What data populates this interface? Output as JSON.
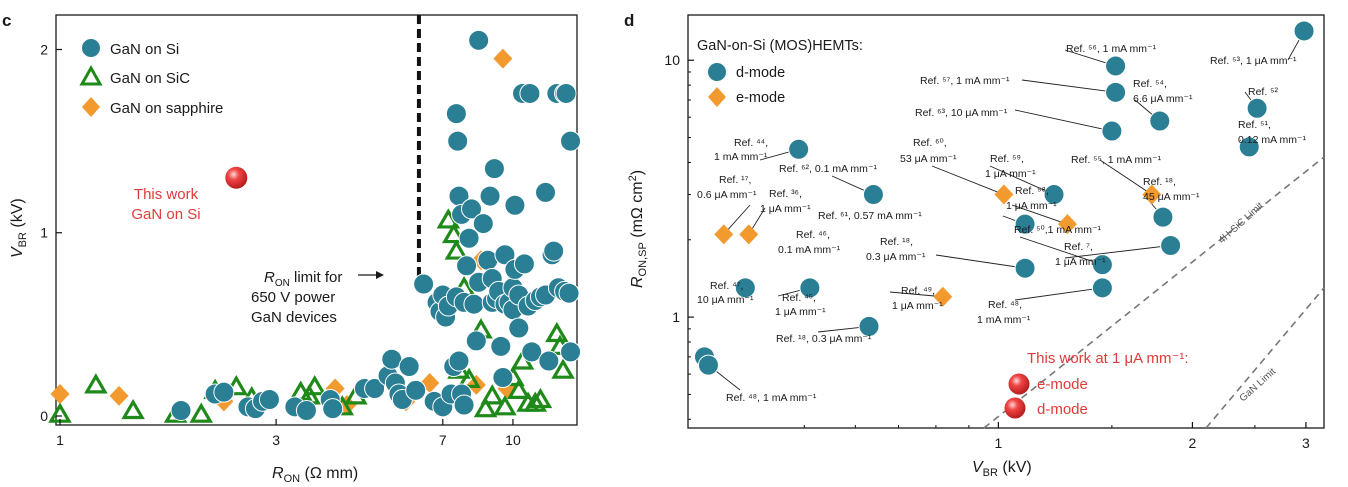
{
  "colors": {
    "si": "#2b7f94",
    "si_stroke": "#ffffff",
    "sic": "#1f8a1a",
    "sapphire": "#f29a2e",
    "this_work": "#e03b3b",
    "limit_line": "#777777"
  },
  "chart_data": [
    {
      "panel": "c",
      "type": "scatter",
      "xscale": "log",
      "xlim": [
        1,
        13.5
      ],
      "ylim": [
        0,
        2.15
      ],
      "xlabel": {
        "main": "R",
        "sub": "ON",
        "rest": " (Ω mm)"
      },
      "ylabel": {
        "main": "V",
        "sub": "BR",
        "rest": " (kV)"
      },
      "xticks": [
        {
          "v": 1,
          "label": "1"
        },
        {
          "v": 3,
          "label": "3"
        },
        {
          "v": 7,
          "label": "7"
        },
        {
          "v": 10,
          "label": "10"
        }
      ],
      "yticks": [
        {
          "v": 0,
          "label": "0"
        },
        {
          "v": 1,
          "label": "1"
        },
        {
          "v": 2,
          "label": "2"
        }
      ],
      "legend": [
        "GaN on Si",
        "GaN on SiC",
        "GaN on sapphire"
      ],
      "this_work": {
        "x": 2.45,
        "y": 1.3,
        "label1": "This work",
        "label2": "GaN on Si"
      },
      "limit": {
        "x": 6.2,
        "y_top": 2.2,
        "y_bottom": 0.8,
        "label_main": "R",
        "label_sub": "ON",
        "label_rest": " limit for",
        "label2": "650 V power",
        "label3": "GaN devices"
      },
      "series": [
        {
          "name": "GaN on sapphire",
          "marker": "diamond",
          "points": [
            [
              1.0,
              0.12
            ],
            [
              1.35,
              0.11
            ],
            [
              2.3,
              0.08
            ],
            [
              4.05,
              0.15
            ],
            [
              4.3,
              0.06
            ],
            [
              5.8,
              0.08
            ],
            [
              6.55,
              0.18
            ],
            [
              8.3,
              0.17
            ],
            [
              8.5,
              0.85
            ],
            [
              9.5,
              1.95
            ],
            [
              9.7,
              0.15
            ]
          ]
        },
        {
          "name": "GaN on SiC",
          "marker": "triangle",
          "points": [
            [
              1.0,
              0.01
            ],
            [
              1.2,
              0.17
            ],
            [
              1.45,
              0.03
            ],
            [
              1.8,
              0.01
            ],
            [
              2.05,
              0.01
            ],
            [
              2.2,
              0.14
            ],
            [
              2.45,
              0.16
            ],
            [
              2.65,
              0.1
            ],
            [
              3.4,
              0.13
            ],
            [
              3.55,
              0.11
            ],
            [
              3.65,
              0.16
            ],
            [
              4.2,
              0.05
            ],
            [
              4.5,
              0.11
            ],
            [
              7.2,
              1.07
            ],
            [
              7.4,
              0.99
            ],
            [
              7.5,
              0.9
            ],
            [
              7.8,
              0.7
            ],
            [
              8.0,
              0.2
            ],
            [
              7.6,
              0.25
            ],
            [
              8.5,
              0.47
            ],
            [
              8.7,
              0.04
            ],
            [
              9.0,
              0.11
            ],
            [
              9.6,
              0.05
            ],
            [
              10.0,
              0.21
            ],
            [
              10.3,
              0.14
            ],
            [
              10.8,
              0.07
            ],
            [
              11.2,
              0.07
            ],
            [
              11.5,
              0.09
            ],
            [
              12.5,
              0.45
            ],
            [
              12.7,
              0.38
            ],
            [
              12.9,
              0.25
            ],
            [
              10.5,
              0.3
            ]
          ]
        },
        {
          "name": "GaN on Si",
          "marker": "circle",
          "points": [
            [
              1.85,
              0.03
            ],
            [
              2.2,
              0.12
            ],
            [
              2.3,
              0.13
            ],
            [
              2.6,
              0.05
            ],
            [
              2.7,
              0.04
            ],
            [
              2.8,
              0.08
            ],
            [
              2.9,
              0.09
            ],
            [
              3.3,
              0.05
            ],
            [
              3.5,
              0.03
            ],
            [
              3.95,
              0.09
            ],
            [
              4.0,
              0.04
            ],
            [
              4.7,
              0.15
            ],
            [
              4.95,
              0.15
            ],
            [
              5.3,
              0.22
            ],
            [
              5.4,
              0.31
            ],
            [
              5.5,
              0.18
            ],
            [
              5.6,
              0.12
            ],
            [
              5.7,
              0.09
            ],
            [
              5.9,
              0.27
            ],
            [
              6.1,
              0.14
            ],
            [
              6.35,
              0.72
            ],
            [
              6.7,
              0.08
            ],
            [
              6.8,
              0.62
            ],
            [
              6.9,
              0.57
            ],
            [
              7.0,
              0.66
            ],
            [
              7.0,
              0.05
            ],
            [
              7.1,
              0.54
            ],
            [
              7.2,
              0.6
            ],
            [
              7.3,
              0.12
            ],
            [
              7.4,
              0.27
            ],
            [
              7.5,
              0.65
            ],
            [
              7.6,
              0.3
            ],
            [
              7.7,
              0.12
            ],
            [
              7.8,
              0.06
            ],
            [
              7.5,
              1.65
            ],
            [
              7.55,
              1.5
            ],
            [
              7.6,
              1.2
            ],
            [
              7.7,
              1.1
            ],
            [
              7.8,
              0.62
            ],
            [
              7.9,
              0.82
            ],
            [
              8.0,
              0.97
            ],
            [
              8.1,
              1.13
            ],
            [
              8.2,
              0.61
            ],
            [
              8.3,
              0.41
            ],
            [
              8.4,
              0.73
            ],
            [
              8.4,
              2.05
            ],
            [
              8.6,
              1.05
            ],
            [
              8.8,
              0.85
            ],
            [
              8.9,
              1.2
            ],
            [
              9.0,
              0.75
            ],
            [
              9.1,
              1.35
            ],
            [
              9.0,
              0.62
            ],
            [
              9.2,
              0.64
            ],
            [
              9.3,
              0.68
            ],
            [
              9.4,
              0.38
            ],
            [
              9.5,
              0.21
            ],
            [
              9.6,
              0.88
            ],
            [
              9.6,
              0.61
            ],
            [
              9.8,
              0.62
            ],
            [
              10.0,
              0.7
            ],
            [
              10.1,
              0.8
            ],
            [
              10.0,
              0.58
            ],
            [
              10.1,
              1.15
            ],
            [
              10.3,
              0.66
            ],
            [
              10.3,
              0.48
            ],
            [
              10.6,
              0.83
            ],
            [
              10.8,
              0.6
            ],
            [
              10.5,
              1.76
            ],
            [
              10.9,
              1.76
            ],
            [
              11.2,
              0.63
            ],
            [
              11.5,
              0.65
            ],
            [
              11.8,
              0.66
            ],
            [
              11.0,
              0.35
            ],
            [
              11.8,
              1.22
            ],
            [
              12.2,
              0.88
            ],
            [
              12.5,
              1.76
            ],
            [
              12.0,
              0.3
            ],
            [
              12.3,
              0.9
            ],
            [
              12.6,
              0.7
            ],
            [
              13.0,
              0.68
            ],
            [
              13.3,
              0.67
            ],
            [
              13.0,
              1.76
            ],
            [
              13.1,
              1.76
            ],
            [
              13.4,
              1.5
            ],
            [
              13.4,
              0.35
            ]
          ]
        }
      ]
    },
    {
      "panel": "d",
      "type": "scatter",
      "xscale": "log",
      "yscale": "log",
      "xlim": [
        0.33,
        3.2
      ],
      "ylim": [
        0.37,
        15
      ],
      "xlabel": {
        "main": "V",
        "sub": "BR",
        "rest": " (kV)"
      },
      "ylabel": {
        "main": "R",
        "sub": "ON,SP",
        "rest": " (mΩ cm",
        "sup": "2",
        "end": ")"
      },
      "xticks": [
        {
          "v": 1,
          "label": "1"
        },
        {
          "v": 2,
          "label": "2"
        },
        {
          "v": 3,
          "label": "3"
        }
      ],
      "yticks": [
        {
          "v": 1,
          "label": "1"
        },
        {
          "v": 10,
          "label": "10"
        }
      ],
      "legend_title": "GaN-on-Si (MOS)HEMTs:",
      "legend": [
        "d-mode",
        "e-mode"
      ],
      "limits": [
        {
          "name": "4H-SiC Limit",
          "x": [
            0.95,
            3.2
          ],
          "y": [
            0.37,
            4.2
          ]
        },
        {
          "name": "GaN Limit",
          "x": [
            2.1,
            3.2
          ],
          "y": [
            0.37,
            1.3
          ]
        }
      ],
      "this_work": {
        "title": "This work at 1 μA mm⁻¹:",
        "items": [
          "e-mode",
          "d-mode"
        ]
      },
      "series": [
        {
          "name": "d-mode",
          "marker": "circle",
          "points": [
            [
              0.35,
              0.7
            ],
            [
              0.355,
              0.65
            ],
            [
              0.405,
              1.3
            ],
            [
              0.49,
              4.5
            ],
            [
              0.51,
              1.3
            ],
            [
              0.63,
              0.92
            ],
            [
              0.64,
              3.0
            ],
            [
              1.1,
              2.3
            ],
            [
              1.1,
              1.55
            ],
            [
              1.22,
              3.0
            ],
            [
              1.45,
              1.6
            ],
            [
              1.45,
              1.3
            ],
            [
              1.52,
              9.5
            ],
            [
              1.52,
              7.5
            ],
            [
              1.5,
              5.3
            ],
            [
              1.78,
              5.8
            ],
            [
              1.8,
              2.45
            ],
            [
              1.85,
              1.9
            ],
            [
              2.45,
              4.6
            ],
            [
              2.52,
              6.5
            ],
            [
              2.98,
              13
            ]
          ]
        },
        {
          "name": "e-mode",
          "marker": "diamond",
          "points": [
            [
              0.375,
              2.1
            ],
            [
              0.41,
              2.1
            ],
            [
              0.82,
              1.2
            ],
            [
              1.02,
              3.0
            ],
            [
              1.28,
              2.3
            ],
            [
              1.73,
              3.0
            ]
          ]
        }
      ],
      "ref_labels": [
        {
          "t": "Ref. ⁴⁴,",
          "sub": ""
        },
        {
          "t": "1 mA mm⁻¹"
        },
        {
          "t": "Ref. ¹⁷,"
        },
        {
          "t": "0.6 μA mm⁻¹"
        },
        {
          "t": "Ref. ³⁶,"
        },
        {
          "t": "1 μA mm⁻¹"
        },
        {
          "t": "Ref. ⁶², 0.1 mA mm⁻¹"
        },
        {
          "t": "Ref. ⁶¹, 0.57 mA mm⁻¹"
        },
        {
          "t": "Ref. ⁴⁶,"
        },
        {
          "t": "0.1 mA mm⁻¹"
        },
        {
          "t": "Ref. ¹⁸,"
        },
        {
          "t": "0.3 μA mm⁻¹"
        },
        {
          "t": "Ref. ⁴⁷,"
        },
        {
          "t": "10 μA mm⁻¹"
        },
        {
          "t": "Ref. ⁴⁵,"
        },
        {
          "t": "1 μA mm⁻¹"
        },
        {
          "t": "Ref. ¹⁸, 0.3 μA mm⁻¹"
        },
        {
          "t": "Ref. ⁴⁸, 1 mA mm⁻¹"
        },
        {
          "t": "Ref. ⁴⁹,"
        },
        {
          "t": "1 μA mm⁻¹"
        },
        {
          "t": "Ref. ⁶⁰,"
        },
        {
          "t": "53 μA mm⁻¹"
        },
        {
          "t": "Ref. ⁵⁹,"
        },
        {
          "t": "1 μA mm⁻¹"
        },
        {
          "t": "Ref. ⁵⁸,"
        },
        {
          "t": "1 μA mm⁻¹"
        },
        {
          "t": "Ref. ⁵⁰,1 mA mm⁻¹"
        },
        {
          "t": "Ref. ⁷,"
        },
        {
          "t": "1 μA mm⁻¹"
        },
        {
          "t": "Ref. ⁴⁸,"
        },
        {
          "t": "1 mA mm⁻¹"
        },
        {
          "t": "Ref. ⁵⁷, 1 mA mm⁻¹"
        },
        {
          "t": "Ref. ⁶³, 10 μA mm⁻¹"
        },
        {
          "t": "Ref. ⁵⁶, 1 mA mm⁻¹"
        },
        {
          "t": "Ref. ⁵⁵, 1 mA mm⁻¹"
        },
        {
          "t": "Ref. ¹⁸,"
        },
        {
          "t": "45 μA mm⁻¹"
        },
        {
          "t": "Ref. ⁵⁴,"
        },
        {
          "t": "6.6 μA mm⁻¹"
        },
        {
          "t": "Ref. ⁵³, 1 μA mm⁻¹"
        },
        {
          "t": "Ref. ⁵²"
        },
        {
          "t": "Ref. ⁵¹,"
        },
        {
          "t": "0.12 mA mm⁻¹"
        }
      ]
    }
  ]
}
